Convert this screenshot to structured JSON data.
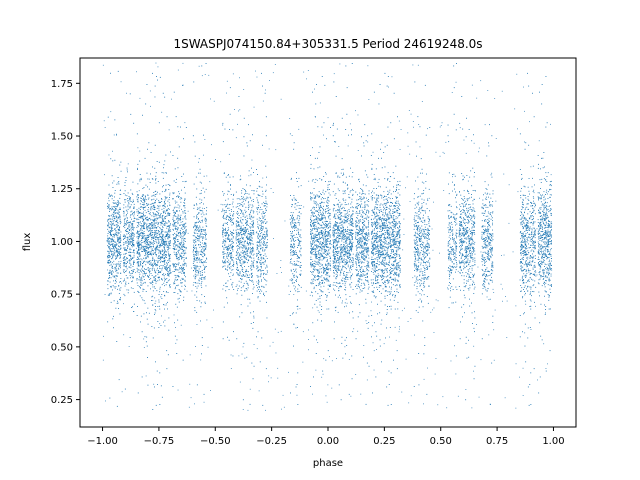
{
  "chart_data": {
    "type": "scatter",
    "title": "1SWASPJ074150.84+305331.5 Period 24619248.0s",
    "xlabel": "phase",
    "ylabel": "flux",
    "xlim": [
      -1.1,
      1.1
    ],
    "ylim": [
      0.12,
      1.87
    ],
    "xticks": [
      -1.0,
      -0.75,
      -0.5,
      -0.25,
      0.0,
      0.25,
      0.5,
      0.75,
      1.0
    ],
    "xtick_labels": [
      "−1.00",
      "−0.75",
      "−0.50",
      "−0.25",
      "0.00",
      "0.25",
      "0.50",
      "0.75",
      "1.00"
    ],
    "yticks": [
      0.25,
      0.5,
      0.75,
      1.0,
      1.25,
      1.5,
      1.75
    ],
    "ytick_labels": [
      "0.25",
      "0.50",
      "0.75",
      "1.00",
      "1.25",
      "1.50",
      "1.75"
    ],
    "grid": false,
    "marker_color": "#1f77b4",
    "series": [
      {
        "flux_center": 1.0,
        "flux_spread": 0.12,
        "flux_outlier_range": [
          0.2,
          1.85
        ],
        "phase_clusters": [
          {
            "range": [
              -0.98,
              -0.92
            ],
            "density": 1.0
          },
          {
            "range": [
              -0.91,
              -0.86
            ],
            "density": 0.8
          },
          {
            "range": [
              -0.85,
              -0.7
            ],
            "density": 1.0
          },
          {
            "range": [
              -0.69,
              -0.63
            ],
            "density": 0.8
          },
          {
            "range": [
              -0.6,
              -0.54
            ],
            "density": 0.7
          },
          {
            "range": [
              -0.47,
              -0.42
            ],
            "density": 0.7
          },
          {
            "range": [
              -0.41,
              -0.33
            ],
            "density": 0.8
          },
          {
            "range": [
              -0.32,
              -0.27
            ],
            "density": 0.7
          },
          {
            "range": [
              -0.17,
              -0.12
            ],
            "density": 0.6
          },
          {
            "range": [
              -0.08,
              0.01
            ],
            "density": 1.0
          },
          {
            "range": [
              0.02,
              0.11
            ],
            "density": 1.0
          },
          {
            "range": [
              0.12,
              0.18
            ],
            "density": 0.9
          },
          {
            "range": [
              0.19,
              0.32
            ],
            "density": 1.0
          },
          {
            "range": [
              0.38,
              0.45
            ],
            "density": 0.7
          },
          {
            "range": [
              0.53,
              0.57
            ],
            "density": 0.6
          },
          {
            "range": [
              0.58,
              0.65
            ],
            "density": 0.8
          },
          {
            "range": [
              0.68,
              0.73
            ],
            "density": 0.7
          },
          {
            "range": [
              0.85,
              0.92
            ],
            "density": 0.8
          },
          {
            "range": [
              0.93,
              0.99
            ],
            "density": 1.0
          }
        ]
      }
    ]
  }
}
